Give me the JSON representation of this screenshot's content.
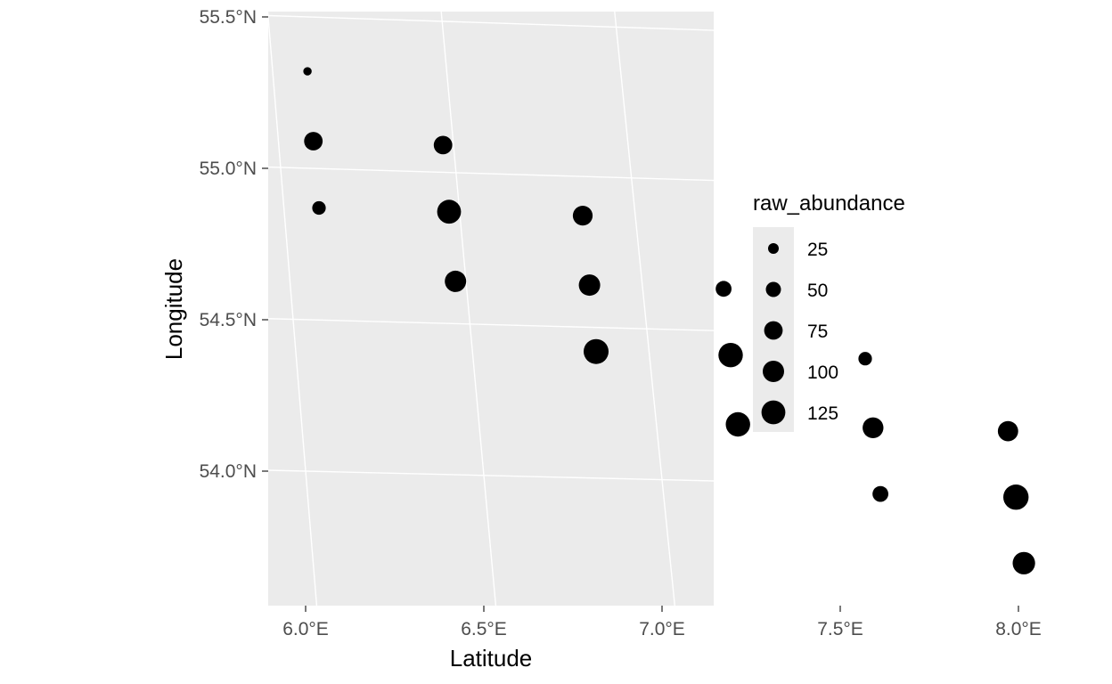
{
  "chart_data": {
    "type": "scatter",
    "title": "",
    "xlabel": "Latitude",
    "ylabel": "Longitude",
    "xlim": [
      5.79,
      8.29
    ],
    "ylim": [
      53.56,
      55.52
    ],
    "x_ticks": [
      {
        "value": 6.0,
        "label": "6.0°E"
      },
      {
        "value": 6.5,
        "label": "6.5°E"
      },
      {
        "value": 7.0,
        "label": "7.0°E"
      },
      {
        "value": 7.5,
        "label": "7.5°E"
      },
      {
        "value": 8.0,
        "label": "8.0°E"
      }
    ],
    "y_ticks": [
      {
        "value": 54.0,
        "label": "54.0°N"
      },
      {
        "value": 54.5,
        "label": "54.5°N"
      },
      {
        "value": 55.0,
        "label": "55.0°N"
      },
      {
        "value": 55.5,
        "label": "55.5°N"
      }
    ],
    "graticule": "curved (map projection), white lines",
    "grid": true,
    "panel_background": "#ebebeb",
    "point_color": "#000000",
    "size_legend": {
      "title": "raw_abundance",
      "position": "right",
      "breaks": [
        25,
        50,
        75,
        100,
        125
      ]
    },
    "points": [
      {
        "lon": 6.1,
        "lat": 55.32,
        "raw_abundance": 15
      },
      {
        "lon": 6.1,
        "lat": 55.09,
        "raw_abundance": 75
      },
      {
        "lon": 6.47,
        "lat": 55.09,
        "raw_abundance": 75
      },
      {
        "lon": 6.1,
        "lat": 54.87,
        "raw_abundance": 40
      },
      {
        "lon": 6.47,
        "lat": 54.87,
        "raw_abundance": 125
      },
      {
        "lon": 6.85,
        "lat": 54.87,
        "raw_abundance": 85
      },
      {
        "lon": 6.47,
        "lat": 54.64,
        "raw_abundance": 100
      },
      {
        "lon": 6.85,
        "lat": 54.64,
        "raw_abundance": 100
      },
      {
        "lon": 7.23,
        "lat": 54.64,
        "raw_abundance": 55
      },
      {
        "lon": 6.85,
        "lat": 54.42,
        "raw_abundance": 135
      },
      {
        "lon": 7.23,
        "lat": 54.42,
        "raw_abundance": 130
      },
      {
        "lon": 7.61,
        "lat": 54.42,
        "raw_abundance": 40
      },
      {
        "lon": 7.23,
        "lat": 54.19,
        "raw_abundance": 130
      },
      {
        "lon": 7.61,
        "lat": 54.19,
        "raw_abundance": 95
      },
      {
        "lon": 7.99,
        "lat": 54.19,
        "raw_abundance": 90
      },
      {
        "lon": 7.61,
        "lat": 53.97,
        "raw_abundance": 55
      },
      {
        "lon": 7.99,
        "lat": 53.97,
        "raw_abundance": 140
      },
      {
        "lon": 7.99,
        "lat": 53.75,
        "raw_abundance": 110
      }
    ]
  }
}
